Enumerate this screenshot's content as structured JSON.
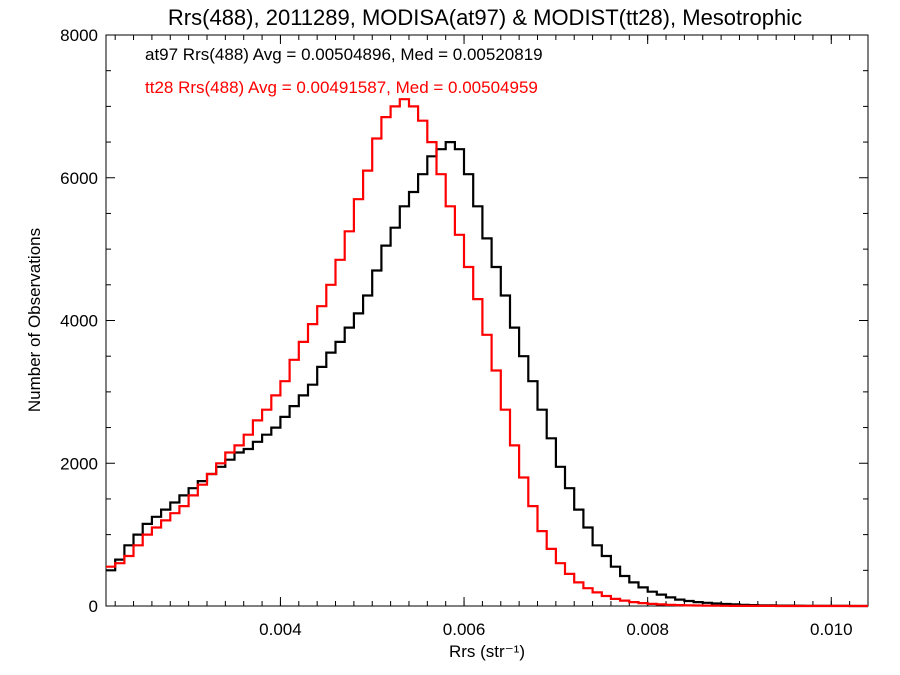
{
  "chart_data": {
    "type": "line",
    "step": true,
    "title": "Rrs(488), 2011289, MODISA(at97) & MODIST(tt28), Mesotrophic",
    "xlabel": "Rrs (str⁻¹)",
    "ylabel": "Number of Observations",
    "xlim": [
      0.0021,
      0.0104
    ],
    "ylim": [
      0,
      8000
    ],
    "xticks": [
      0.004,
      0.006,
      0.008,
      0.01
    ],
    "xtick_labels": [
      "0.004",
      "0.006",
      "0.008",
      "0.010"
    ],
    "yticks": [
      0,
      2000,
      4000,
      6000,
      8000
    ],
    "ytick_labels": [
      "0",
      "2000",
      "4000",
      "6000",
      "8000"
    ],
    "grid": false,
    "annotations": [
      {
        "text": "at97 Rrs(488) Avg = 0.00504896, Med = 0.00520819",
        "color": "#000000"
      },
      {
        "text": "tt28 Rrs(488) Avg = 0.00491587, Med = 0.00504959",
        "color": "#ff0000"
      }
    ],
    "series": [
      {
        "name": "at97",
        "color": "#000000",
        "x": [
          0.0021,
          0.0022,
          0.0023,
          0.0024,
          0.0025,
          0.0026,
          0.0027,
          0.0028,
          0.0029,
          0.003,
          0.0031,
          0.0032,
          0.0033,
          0.0034,
          0.0035,
          0.0036,
          0.0037,
          0.0038,
          0.0039,
          0.004,
          0.0041,
          0.0042,
          0.0043,
          0.0044,
          0.0045,
          0.0046,
          0.0047,
          0.0048,
          0.0049,
          0.005,
          0.0051,
          0.0052,
          0.0053,
          0.0054,
          0.0055,
          0.0056,
          0.0057,
          0.0058,
          0.0059,
          0.006,
          0.0061,
          0.0062,
          0.0063,
          0.0064,
          0.0065,
          0.0066,
          0.0067,
          0.0068,
          0.0069,
          0.007,
          0.0071,
          0.0072,
          0.0073,
          0.0074,
          0.0075,
          0.0076,
          0.0077,
          0.0078,
          0.0079,
          0.008,
          0.0081,
          0.0082,
          0.0083,
          0.0084,
          0.0085,
          0.0086,
          0.0087,
          0.0088,
          0.0089,
          0.009,
          0.0091,
          0.0092,
          0.0093,
          0.0094,
          0.0095,
          0.0096,
          0.0097,
          0.0098,
          0.0099,
          0.01,
          0.0101,
          0.0102,
          0.0103,
          0.0104
        ],
        "y": [
          500,
          650,
          850,
          1000,
          1150,
          1250,
          1350,
          1450,
          1550,
          1650,
          1750,
          1850,
          1950,
          2050,
          2150,
          2200,
          2300,
          2400,
          2500,
          2650,
          2800,
          2950,
          3100,
          3350,
          3550,
          3700,
          3900,
          4100,
          4350,
          4700,
          5050,
          5300,
          5600,
          5800,
          6050,
          6300,
          6400,
          6500,
          6400,
          6050,
          5600,
          5150,
          4750,
          4350,
          3900,
          3500,
          3150,
          2750,
          2350,
          1950,
          1650,
          1350,
          1100,
          850,
          700,
          550,
          420,
          330,
          260,
          200,
          160,
          120,
          90,
          70,
          55,
          45,
          35,
          28,
          22,
          17,
          13,
          10,
          8,
          6,
          5,
          4,
          3,
          2,
          2,
          1,
          1,
          0,
          0,
          0
        ]
      },
      {
        "name": "tt28",
        "color": "#ff0000",
        "x": [
          0.0021,
          0.0022,
          0.0023,
          0.0024,
          0.0025,
          0.0026,
          0.0027,
          0.0028,
          0.0029,
          0.003,
          0.0031,
          0.0032,
          0.0033,
          0.0034,
          0.0035,
          0.0036,
          0.0037,
          0.0038,
          0.0039,
          0.004,
          0.0041,
          0.0042,
          0.0043,
          0.0044,
          0.0045,
          0.0046,
          0.0047,
          0.0048,
          0.0049,
          0.005,
          0.0051,
          0.0052,
          0.0053,
          0.0054,
          0.0055,
          0.0056,
          0.0057,
          0.0058,
          0.0059,
          0.006,
          0.0061,
          0.0062,
          0.0063,
          0.0064,
          0.0065,
          0.0066,
          0.0067,
          0.0068,
          0.0069,
          0.007,
          0.0071,
          0.0072,
          0.0073,
          0.0074,
          0.0075,
          0.0076,
          0.0077,
          0.0078,
          0.0079,
          0.008,
          0.0081,
          0.0082,
          0.0083,
          0.0084,
          0.0085,
          0.0086,
          0.0087,
          0.0088,
          0.0089,
          0.009,
          0.0091,
          0.0092,
          0.0093,
          0.0094,
          0.0095,
          0.0096,
          0.0097,
          0.0098,
          0.0099,
          0.01,
          0.0101,
          0.0102,
          0.0103,
          0.0104
        ],
        "y": [
          550,
          600,
          700,
          850,
          1000,
          1100,
          1200,
          1300,
          1400,
          1550,
          1700,
          1850,
          2000,
          2150,
          2250,
          2400,
          2600,
          2750,
          2950,
          3150,
          3450,
          3700,
          3950,
          4200,
          4500,
          4850,
          5250,
          5700,
          6100,
          6550,
          6850,
          7000,
          7100,
          7000,
          6800,
          6500,
          6050,
          5600,
          5200,
          4750,
          4300,
          3800,
          3300,
          2750,
          2250,
          1800,
          1400,
          1050,
          800,
          600,
          450,
          330,
          250,
          190,
          140,
          100,
          75,
          55,
          40,
          30,
          22,
          16,
          12,
          9,
          7,
          5,
          4,
          3,
          2,
          2,
          1,
          1,
          1,
          0,
          0,
          0,
          0,
          0,
          0,
          0,
          0,
          0,
          0,
          0
        ]
      }
    ]
  }
}
